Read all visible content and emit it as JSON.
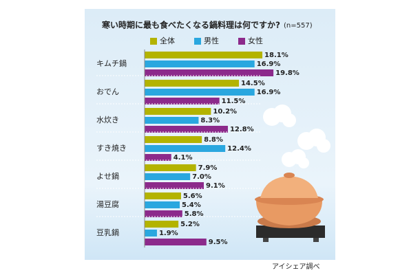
{
  "chart_data": {
    "type": "hbar",
    "title": "寒い時期に最も食べたくなる鍋料理は何ですか?",
    "sample_note": "(n=557)",
    "source": "アイシェア調べ",
    "categories": [
      "キムチ鍋",
      "おでん",
      "水炊き",
      "すき焼き",
      "よせ鍋",
      "湯豆腐",
      "豆乳鍋"
    ],
    "series": [
      {
        "name": "全体",
        "color": "#b3b300",
        "values": [
          18.1,
          14.5,
          10.2,
          8.8,
          7.9,
          5.6,
          5.2
        ],
        "value_labels": [
          "18.1%",
          "14.5%",
          "10.2%",
          "8.8%",
          "7.9%",
          "5.6%",
          "5.2%"
        ]
      },
      {
        "name": "男性",
        "color": "#2aa7df",
        "values": [
          16.9,
          16.9,
          8.3,
          12.4,
          7.0,
          5.4,
          1.9
        ],
        "value_labels": [
          "16.9%",
          "16.9%",
          "8.3%",
          "12.4%",
          "7.0%",
          "5.4%",
          "1.9%"
        ]
      },
      {
        "name": "女性",
        "color": "#8c2a8b",
        "values": [
          19.8,
          11.5,
          12.8,
          4.1,
          9.1,
          5.8,
          9.5
        ],
        "value_labels": [
          "19.8%",
          "11.5%",
          "12.8%",
          "4.1%",
          "9.1%",
          "5.8%",
          "9.5%"
        ]
      }
    ]
  }
}
